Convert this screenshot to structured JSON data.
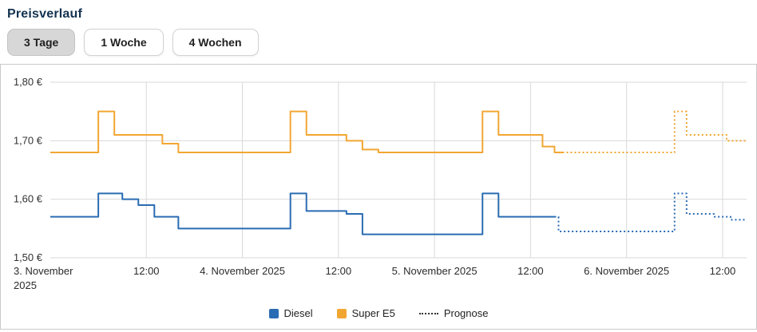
{
  "page": {
    "title": "Preisverlauf"
  },
  "buttons": [
    {
      "label": "3 Tage",
      "selected": true
    },
    {
      "label": "1 Woche",
      "selected": false
    },
    {
      "label": "4 Wochen",
      "selected": false
    }
  ],
  "legend": [
    {
      "label": "Diesel",
      "type": "square",
      "color": "#2a6cb3"
    },
    {
      "label": "Super E5",
      "type": "square",
      "color": "#f2a632"
    },
    {
      "label": "Prognose",
      "type": "dotted-line",
      "color": "#333333"
    }
  ],
  "chart_data": {
    "type": "line",
    "step": true,
    "x_unit": "hours since 3. November 2025 00:00",
    "xlim": [
      0,
      87
    ],
    "ylim": [
      1.5,
      1.8
    ],
    "grid": true,
    "legend_position": "bottom",
    "yticks": [
      {
        "value": 1.8,
        "label": "1,80 €"
      },
      {
        "value": 1.7,
        "label": "1,70 €"
      },
      {
        "value": 1.6,
        "label": "1,60 €"
      },
      {
        "value": 1.5,
        "label": "1,50 €"
      }
    ],
    "xticks": [
      {
        "hour": 0,
        "label": "3. November",
        "label2": "2025",
        "align": "left",
        "grid": false
      },
      {
        "hour": 12,
        "label": "12:00",
        "grid": true
      },
      {
        "hour": 24,
        "label": "4. November 2025",
        "grid": true
      },
      {
        "hour": 36,
        "label": "12:00",
        "grid": true
      },
      {
        "hour": 48,
        "label": "5. November 2025",
        "grid": true
      },
      {
        "hour": 60,
        "label": "12:00",
        "grid": true
      },
      {
        "hour": 72,
        "label": "6. November 2025",
        "grid": true
      },
      {
        "hour": 84,
        "label": "12:00",
        "grid": true
      }
    ],
    "series": [
      {
        "name": "Super E5",
        "color": "#f2a632",
        "dashed": false,
        "end": 64,
        "points": [
          [
            0,
            1.68
          ],
          [
            6,
            1.75
          ],
          [
            8,
            1.71
          ],
          [
            14,
            1.695
          ],
          [
            16,
            1.68
          ],
          [
            30,
            1.75
          ],
          [
            32,
            1.71
          ],
          [
            37,
            1.7
          ],
          [
            39,
            1.685
          ],
          [
            41,
            1.68
          ],
          [
            54,
            1.75
          ],
          [
            56,
            1.71
          ],
          [
            61.5,
            1.69
          ],
          [
            63,
            1.68
          ]
        ]
      },
      {
        "name": "Super E5 Prognose",
        "color": "#f2a632",
        "dashed": true,
        "end": 87,
        "points": [
          [
            64,
            1.68
          ],
          [
            78,
            1.75
          ],
          [
            79.5,
            1.71
          ],
          [
            84.5,
            1.7
          ]
        ]
      },
      {
        "name": "Diesel",
        "color": "#2a6cb3",
        "dashed": false,
        "end": 63,
        "points": [
          [
            0,
            1.57
          ],
          [
            6,
            1.61
          ],
          [
            9,
            1.6
          ],
          [
            11,
            1.59
          ],
          [
            13,
            1.57
          ],
          [
            16,
            1.55
          ],
          [
            30,
            1.61
          ],
          [
            32,
            1.58
          ],
          [
            37,
            1.575
          ],
          [
            39,
            1.54
          ],
          [
            54,
            1.61
          ],
          [
            56,
            1.57
          ]
        ]
      },
      {
        "name": "Diesel Prognose",
        "color": "#2a6cb3",
        "dashed": true,
        "end": 87,
        "points": [
          [
            63,
            1.57
          ],
          [
            63.5,
            1.545
          ],
          [
            78,
            1.61
          ],
          [
            79.5,
            1.575
          ],
          [
            83,
            1.57
          ],
          [
            85,
            1.565
          ]
        ]
      }
    ]
  }
}
